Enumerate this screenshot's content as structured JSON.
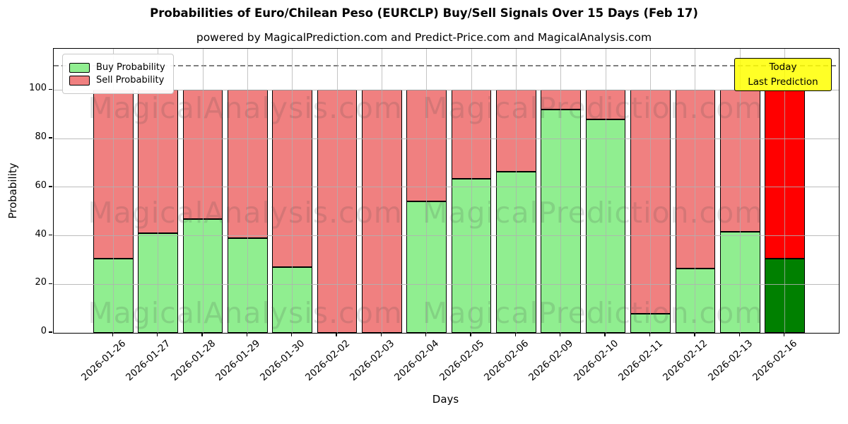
{
  "chart_data": {
    "type": "bar",
    "stacked": true,
    "title": "Probabilities of Euro/Chilean Peso (EURCLP) Buy/Sell Signals Over 15 Days (Feb 17)",
    "subtitle": "powered by MagicalPrediction.com and Predict-Price.com and MagicalAnalysis.com",
    "xlabel": "Days",
    "ylabel": "Probability",
    "categories": [
      "2026-01-26",
      "2026-01-27",
      "2026-01-28",
      "2026-01-29",
      "2026-01-30",
      "2026-02-02",
      "2026-02-03",
      "2026-02-04",
      "2026-02-05",
      "2026-02-06",
      "2026-02-09",
      "2026-02-10",
      "2026-02-11",
      "2026-02-12",
      "2026-02-13",
      "2026-02-16"
    ],
    "series": [
      {
        "name": "Buy Probability",
        "color": "#90ee90",
        "values": [
          30.5,
          41,
          47,
          39,
          27,
          0,
          0,
          54,
          63.5,
          66.5,
          92,
          88,
          8,
          26.5,
          41.5,
          30.5
        ]
      },
      {
        "name": "Sell Probability",
        "color": "#f08080",
        "values": [
          69.5,
          59,
          53,
          61,
          73,
          100,
          100,
          46,
          36.5,
          33.5,
          8,
          12,
          92,
          73.5,
          58.5,
          69.5
        ]
      }
    ],
    "today_bar": {
      "category": "2026-02-16",
      "index": 15,
      "buy_color": "#008000",
      "sell_color": "#ff0000"
    },
    "ylim": [
      0,
      117
    ],
    "yticks": [
      0,
      20,
      40,
      60,
      80,
      100
    ],
    "dashed_line_y": 110,
    "grid": true,
    "legend_position": "upper left",
    "bar_edge_color": "#000000"
  },
  "annotation": {
    "line1": "Today",
    "line2": "Last Prediction",
    "bg_color": "#ffff00"
  },
  "watermarks": {
    "left_text": "MagicalAnalysis.com",
    "right_text": "MagicalPrediction.com"
  }
}
